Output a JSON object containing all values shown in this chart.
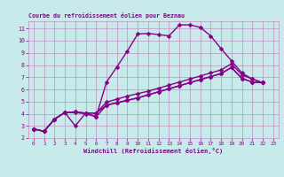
{
  "title": "Courbe du refroidissement éolien pour Beznau",
  "xlabel": "Windchill (Refroidissement éolien,°C)",
  "xlim": [
    -0.5,
    23.5
  ],
  "ylim": [
    2,
    11.6
  ],
  "xticks": [
    0,
    1,
    2,
    3,
    4,
    5,
    6,
    7,
    8,
    9,
    10,
    11,
    12,
    13,
    14,
    15,
    16,
    17,
    18,
    19,
    20,
    21,
    22,
    23
  ],
  "yticks": [
    2,
    3,
    4,
    5,
    6,
    7,
    8,
    9,
    10,
    11
  ],
  "bg_color": "#c8eaea",
  "grid_color": "#c090c0",
  "line_color": "#880088",
  "line_width": 1.0,
  "marker_size": 2.5,
  "lines": [
    {
      "x": [
        0,
        1,
        2,
        3,
        4,
        5,
        6,
        7,
        8,
        9,
        10,
        11,
        12,
        13,
        14,
        15,
        16,
        17,
        18,
        19,
        20,
        21,
        22
      ],
      "y": [
        2.75,
        2.55,
        3.55,
        4.1,
        4.1,
        4.0,
        3.75,
        6.6,
        7.85,
        9.15,
        10.55,
        10.6,
        10.5,
        10.4,
        11.3,
        11.3,
        11.1,
        10.4,
        9.35,
        8.35,
        7.35,
        6.85,
        6.55
      ]
    },
    {
      "x": [
        0,
        1,
        2,
        3,
        4,
        5,
        6,
        7,
        8,
        9,
        10,
        11,
        12,
        13,
        14,
        15,
        16,
        17,
        18,
        19,
        20,
        21,
        22
      ],
      "y": [
        2.75,
        2.55,
        3.55,
        4.1,
        4.15,
        4.05,
        4.05,
        4.95,
        5.2,
        5.45,
        5.65,
        5.85,
        6.1,
        6.35,
        6.6,
        6.85,
        7.1,
        7.35,
        7.6,
        8.1,
        7.2,
        6.85,
        6.55
      ]
    },
    {
      "x": [
        0,
        1,
        2,
        3,
        4,
        5,
        6,
        7,
        8,
        9,
        10,
        11,
        12,
        13,
        14,
        15,
        16,
        17,
        18,
        19,
        20,
        21,
        22
      ],
      "y": [
        2.75,
        2.55,
        3.55,
        4.1,
        4.15,
        4.05,
        4.05,
        4.7,
        4.9,
        5.1,
        5.3,
        5.55,
        5.8,
        6.05,
        6.3,
        6.55,
        6.8,
        7.05,
        7.3,
        7.8,
        6.9,
        6.6,
        6.55
      ]
    },
    {
      "x": [
        0,
        1,
        2,
        3,
        4,
        5,
        6,
        7,
        8,
        9,
        10,
        11,
        12,
        13,
        14,
        15,
        16,
        17,
        18,
        19,
        20,
        21,
        22
      ],
      "y": [
        2.75,
        2.55,
        3.55,
        4.1,
        3.0,
        4.05,
        3.75,
        4.7,
        4.9,
        5.1,
        5.3,
        5.55,
        5.8,
        6.05,
        6.3,
        6.55,
        6.8,
        7.05,
        7.3,
        7.8,
        6.9,
        6.6,
        6.55
      ]
    }
  ],
  "figsize": [
    3.2,
    2.0
  ],
  "dpi": 100
}
